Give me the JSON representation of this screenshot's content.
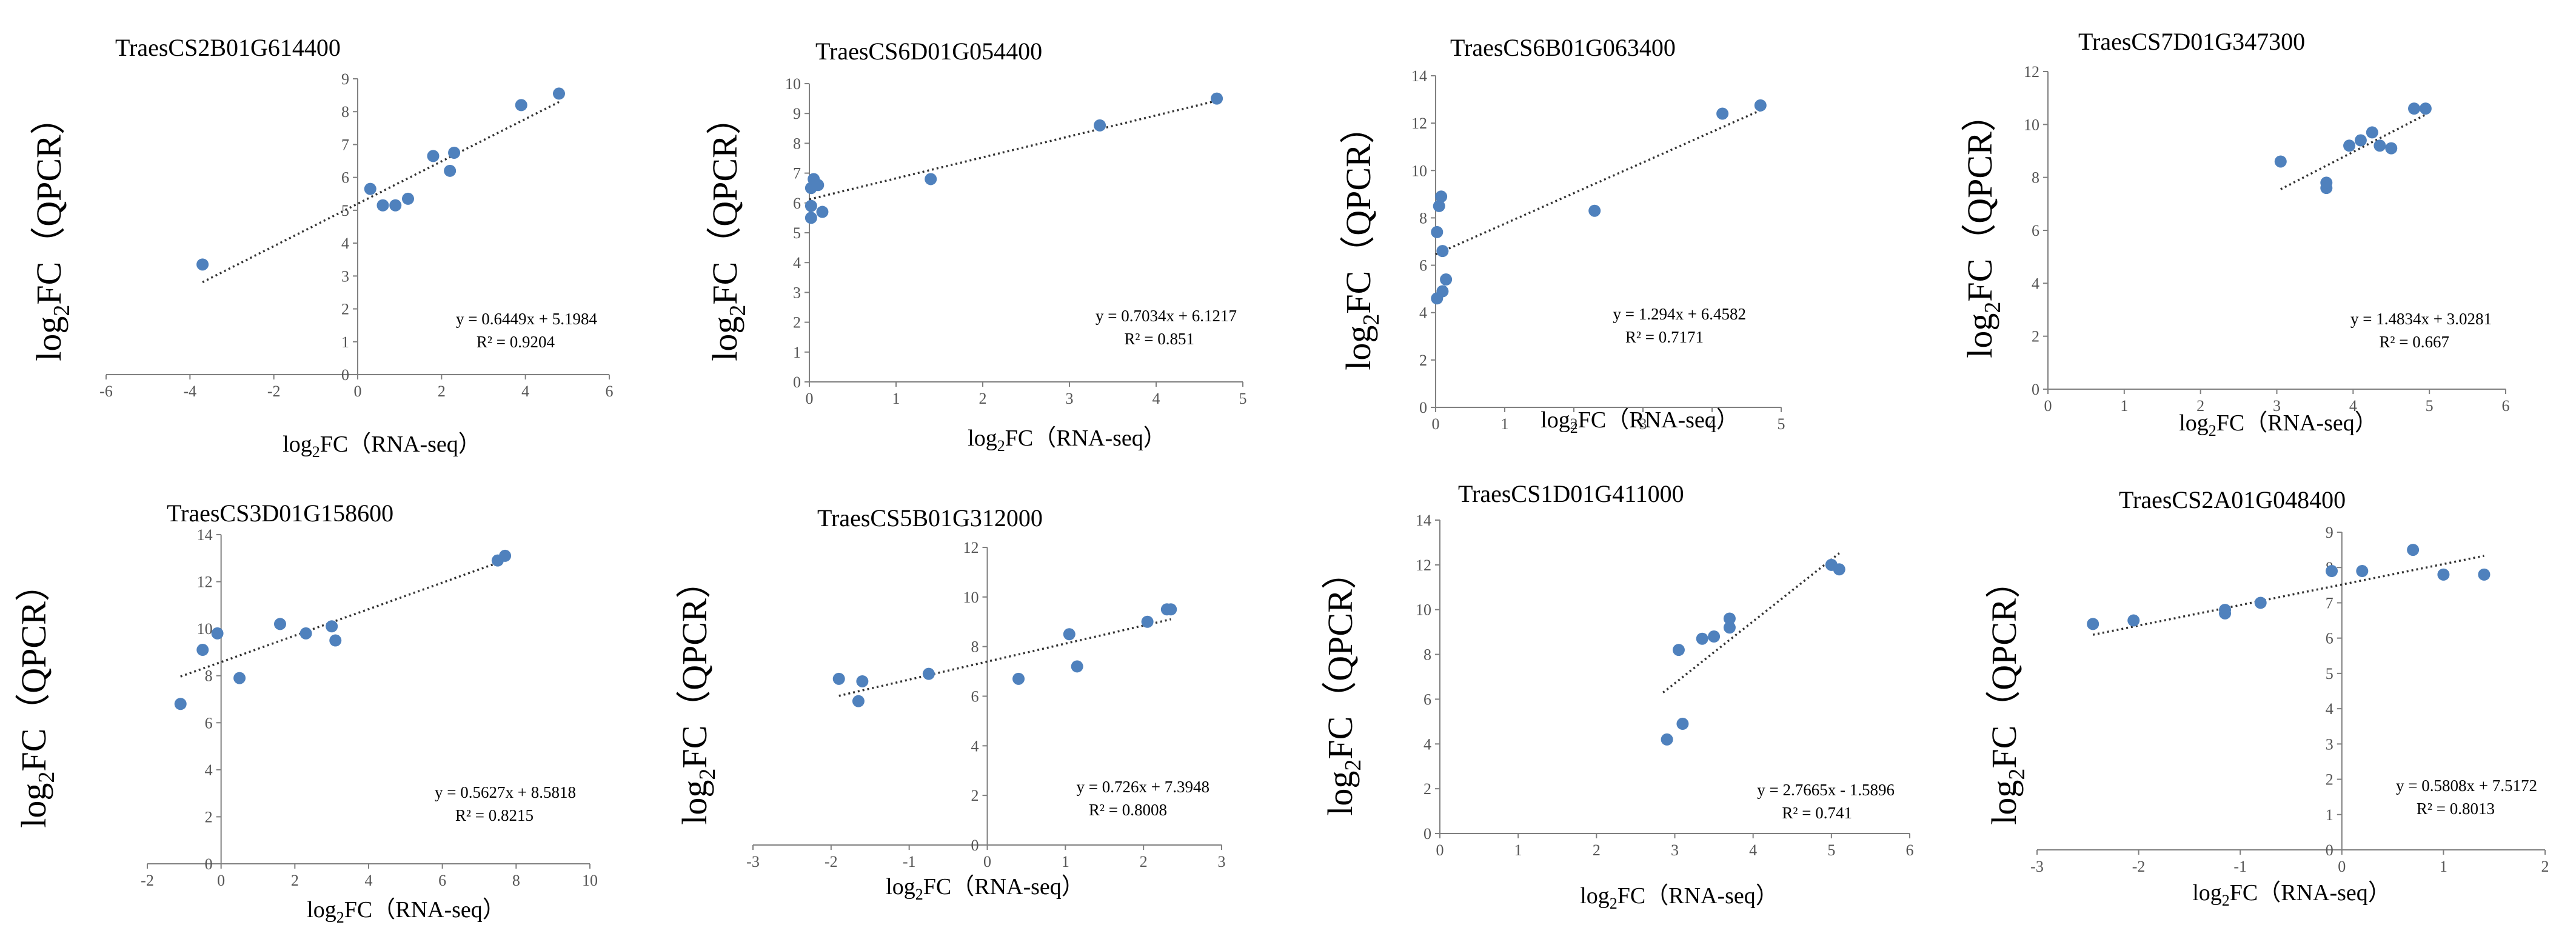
{
  "colors": {
    "point": "#4f81bd",
    "axis": "#808080",
    "trend": "#333333",
    "text": "#000000"
  },
  "chart_data": [
    {
      "type": "scatter",
      "title": "TraesCS2B01G614400",
      "xlabel_main": "log",
      "xlabel_sub": "2",
      "xlabel_rest": "FC（RNA-seq）",
      "ylabel_main": "log",
      "ylabel_sub": "2",
      "ylabel_rest": "FC（QPCR）",
      "xlim": [
        -6,
        6
      ],
      "ylim": [
        0,
        9
      ],
      "xticks": [
        -6,
        -4,
        -2,
        0,
        2,
        4,
        6
      ],
      "yticks": [
        0,
        1,
        2,
        3,
        4,
        5,
        6,
        7,
        8,
        9
      ],
      "points": [
        [
          -3.7,
          3.35
        ],
        [
          0.3,
          5.65
        ],
        [
          0.6,
          5.15
        ],
        [
          0.9,
          5.15
        ],
        [
          1.2,
          5.35
        ],
        [
          1.8,
          6.65
        ],
        [
          2.2,
          6.2
        ],
        [
          2.3,
          6.75
        ],
        [
          3.9,
          8.2
        ],
        [
          4.8,
          8.55
        ]
      ],
      "trend": {
        "slope": 0.6449,
        "intercept": 5.1984,
        "x_range": [
          -3.7,
          4.8
        ]
      },
      "equation": "y = 0.6449x  + 5.1984",
      "r2": "R² = 0.9204"
    },
    {
      "type": "scatter",
      "title": "TraesCS6D01G054400",
      "xlabel_main": "log",
      "xlabel_sub": "2",
      "xlabel_rest": "FC（RNA-seq）",
      "ylabel_main": "log",
      "ylabel_sub": "2",
      "ylabel_rest": "FC（QPCR）",
      "xlim": [
        0,
        5
      ],
      "ylim": [
        0,
        10
      ],
      "xticks": [
        0,
        1,
        2,
        3,
        4,
        5
      ],
      "yticks": [
        0,
        1,
        2,
        3,
        4,
        5,
        6,
        7,
        8,
        9,
        10
      ],
      "points": [
        [
          0.02,
          5.5
        ],
        [
          0.02,
          5.9
        ],
        [
          0.02,
          6.5
        ],
        [
          0.05,
          6.8
        ],
        [
          0.1,
          6.6
        ],
        [
          0.15,
          5.7
        ],
        [
          1.4,
          6.8
        ],
        [
          3.35,
          8.6
        ],
        [
          4.7,
          9.5
        ]
      ],
      "trend": {
        "slope": 0.7034,
        "intercept": 6.1217,
        "x_range": [
          0,
          4.7
        ]
      },
      "equation": "y = 0.7034x  + 6.1217",
      "r2": "R² = 0.851"
    },
    {
      "type": "scatter",
      "title": "TraesCS6B01G063400",
      "xlabel_main": "log",
      "xlabel_sub": "2",
      "xlabel_rest": "FC（RNA-seq）",
      "ylabel_main": "log",
      "ylabel_sub": "2",
      "ylabel_rest": "FC（QPCR）",
      "xlim": [
        0,
        5
      ],
      "ylim": [
        0,
        14
      ],
      "xticks": [
        0,
        1,
        2,
        3,
        4,
        5
      ],
      "yticks": [
        0,
        2,
        4,
        6,
        8,
        10,
        12,
        14
      ],
      "points": [
        [
          0.02,
          4.6
        ],
        [
          0.02,
          7.4
        ],
        [
          0.05,
          8.5
        ],
        [
          0.08,
          8.9
        ],
        [
          0.1,
          4.9
        ],
        [
          0.15,
          5.4
        ],
        [
          0.1,
          6.6
        ],
        [
          2.3,
          8.3
        ],
        [
          4.15,
          12.4
        ],
        [
          4.7,
          12.75
        ]
      ],
      "trend": {
        "slope": 1.294,
        "intercept": 6.4582,
        "x_range": [
          0,
          4.7
        ]
      },
      "equation": "y = 1.294x  + 6.4582",
      "r2": "R² = 0.7171"
    },
    {
      "type": "scatter",
      "title": "TraesCS7D01G347300",
      "xlabel_main": "log",
      "xlabel_sub": "2",
      "xlabel_rest": "FC（RNA-seq）",
      "ylabel_main": "log",
      "ylabel_sub": "2",
      "ylabel_rest": "FC（QPCR）",
      "xlim": [
        0,
        6
      ],
      "ylim": [
        0,
        12
      ],
      "xticks": [
        0,
        1,
        2,
        3,
        4,
        5,
        6
      ],
      "yticks": [
        0,
        2,
        4,
        6,
        8,
        10,
        12
      ],
      "points": [
        [
          3.05,
          8.6
        ],
        [
          3.65,
          7.6
        ],
        [
          3.65,
          7.8
        ],
        [
          3.95,
          9.2
        ],
        [
          4.1,
          9.4
        ],
        [
          4.25,
          9.7
        ],
        [
          4.35,
          9.2
        ],
        [
          4.5,
          9.1
        ],
        [
          4.8,
          10.6
        ],
        [
          4.95,
          10.6
        ]
      ],
      "trend": {
        "slope": 1.4834,
        "intercept": 3.0281,
        "x_range": [
          3.05,
          4.95
        ]
      },
      "equation": "y = 1.4834x  + 3.0281",
      "r2": "R² = 0.667"
    },
    {
      "type": "scatter",
      "title": "TraesCS3D01G158600",
      "xlabel_main": "log",
      "xlabel_sub": "2",
      "xlabel_rest": "FC（RNA-seq）",
      "ylabel_main": "log",
      "ylabel_sub": "2",
      "ylabel_rest": "FC（QPCR）",
      "xlim": [
        -2,
        10
      ],
      "ylim": [
        0,
        14
      ],
      "xticks": [
        -2,
        0,
        2,
        4,
        6,
        8,
        10
      ],
      "yticks": [
        0,
        2,
        4,
        6,
        8,
        10,
        12,
        14
      ],
      "points": [
        [
          -1.1,
          6.8
        ],
        [
          -0.5,
          9.1
        ],
        [
          -0.1,
          9.8
        ],
        [
          0.5,
          7.9
        ],
        [
          1.6,
          10.2
        ],
        [
          2.3,
          9.8
        ],
        [
          3.0,
          10.1
        ],
        [
          3.1,
          9.5
        ],
        [
          7.5,
          12.9
        ],
        [
          7.7,
          13.1
        ]
      ],
      "trend": {
        "slope": 0.5627,
        "intercept": 8.5818,
        "x_range": [
          -1.1,
          7.7
        ]
      },
      "equation": "y = 0.5627x  + 8.5818",
      "r2": "R² = 0.8215"
    },
    {
      "type": "scatter",
      "title": "TraesCS5B01G312000",
      "xlabel_main": "log",
      "xlabel_sub": "2",
      "xlabel_rest": "FC（RNA-seq）",
      "ylabel_main": "log",
      "ylabel_sub": "2",
      "ylabel_rest": "FC（QPCR）",
      "xlim": [
        -3,
        3
      ],
      "ylim": [
        0,
        12
      ],
      "xticks": [
        -3,
        -2,
        -1,
        0,
        1,
        2,
        3
      ],
      "yticks": [
        0,
        2,
        4,
        6,
        8,
        10,
        12
      ],
      "points": [
        [
          -1.9,
          6.7
        ],
        [
          -1.65,
          5.8
        ],
        [
          -1.6,
          6.6
        ],
        [
          -0.75,
          6.9
        ],
        [
          0.4,
          6.7
        ],
        [
          1.05,
          8.5
        ],
        [
          1.15,
          7.2
        ],
        [
          2.05,
          9.0
        ],
        [
          2.3,
          9.5
        ],
        [
          2.35,
          9.5
        ]
      ],
      "trend": {
        "slope": 0.726,
        "intercept": 7.3948,
        "x_range": [
          -1.9,
          2.35
        ]
      },
      "equation": "y = 0.726x  + 7.3948",
      "r2": "R² = 0.8008"
    },
    {
      "type": "scatter",
      "title": "TraesCS1D01G411000",
      "xlabel_main": "log",
      "xlabel_sub": "2",
      "xlabel_rest": "FC（RNA-seq）",
      "ylabel_main": "log",
      "ylabel_sub": "2",
      "ylabel_rest": "FC（QPCR）",
      "xlim": [
        0,
        6
      ],
      "ylim": [
        0,
        14
      ],
      "xticks": [
        0,
        1,
        2,
        3,
        4,
        5,
        6
      ],
      "yticks": [
        0,
        2,
        4,
        6,
        8,
        10,
        12,
        14
      ],
      "points": [
        [
          2.9,
          4.2
        ],
        [
          3.05,
          8.2
        ],
        [
          3.1,
          4.9
        ],
        [
          3.35,
          8.7
        ],
        [
          3.5,
          8.8
        ],
        [
          3.7,
          9.2
        ],
        [
          3.7,
          9.6
        ],
        [
          5.0,
          12.0
        ],
        [
          5.1,
          11.8
        ]
      ],
      "trend": {
        "slope": 2.7665,
        "intercept": -1.5896,
        "x_range": [
          2.85,
          5.1
        ]
      },
      "equation": "y = 2.7665x  - 1.5896",
      "r2": "R² = 0.741"
    },
    {
      "type": "scatter",
      "title": "TraesCS2A01G048400",
      "xlabel_main": "log",
      "xlabel_sub": "2",
      "xlabel_rest": "FC（RNA-seq）",
      "ylabel_main": "log",
      "ylabel_sub": "2",
      "ylabel_rest": "FC（QPCR）",
      "xlim": [
        -3,
        2
      ],
      "ylim": [
        0,
        9
      ],
      "xticks": [
        -3,
        -2,
        -1,
        0,
        1,
        2
      ],
      "yticks": [
        0,
        1,
        2,
        3,
        4,
        5,
        6,
        7,
        8,
        9
      ],
      "points": [
        [
          -2.45,
          6.4
        ],
        [
          -2.05,
          6.5
        ],
        [
          -1.15,
          6.7
        ],
        [
          -1.15,
          6.8
        ],
        [
          -0.8,
          7.0
        ],
        [
          -0.1,
          7.9
        ],
        [
          0.2,
          7.9
        ],
        [
          0.7,
          8.5
        ],
        [
          1.0,
          7.8
        ],
        [
          1.4,
          7.8
        ]
      ],
      "trend": {
        "slope": 0.5808,
        "intercept": 7.5172,
        "x_range": [
          -2.45,
          1.4
        ]
      },
      "equation": "y = 0.5808x  + 7.5172",
      "r2": "R² = 0.8013"
    }
  ]
}
